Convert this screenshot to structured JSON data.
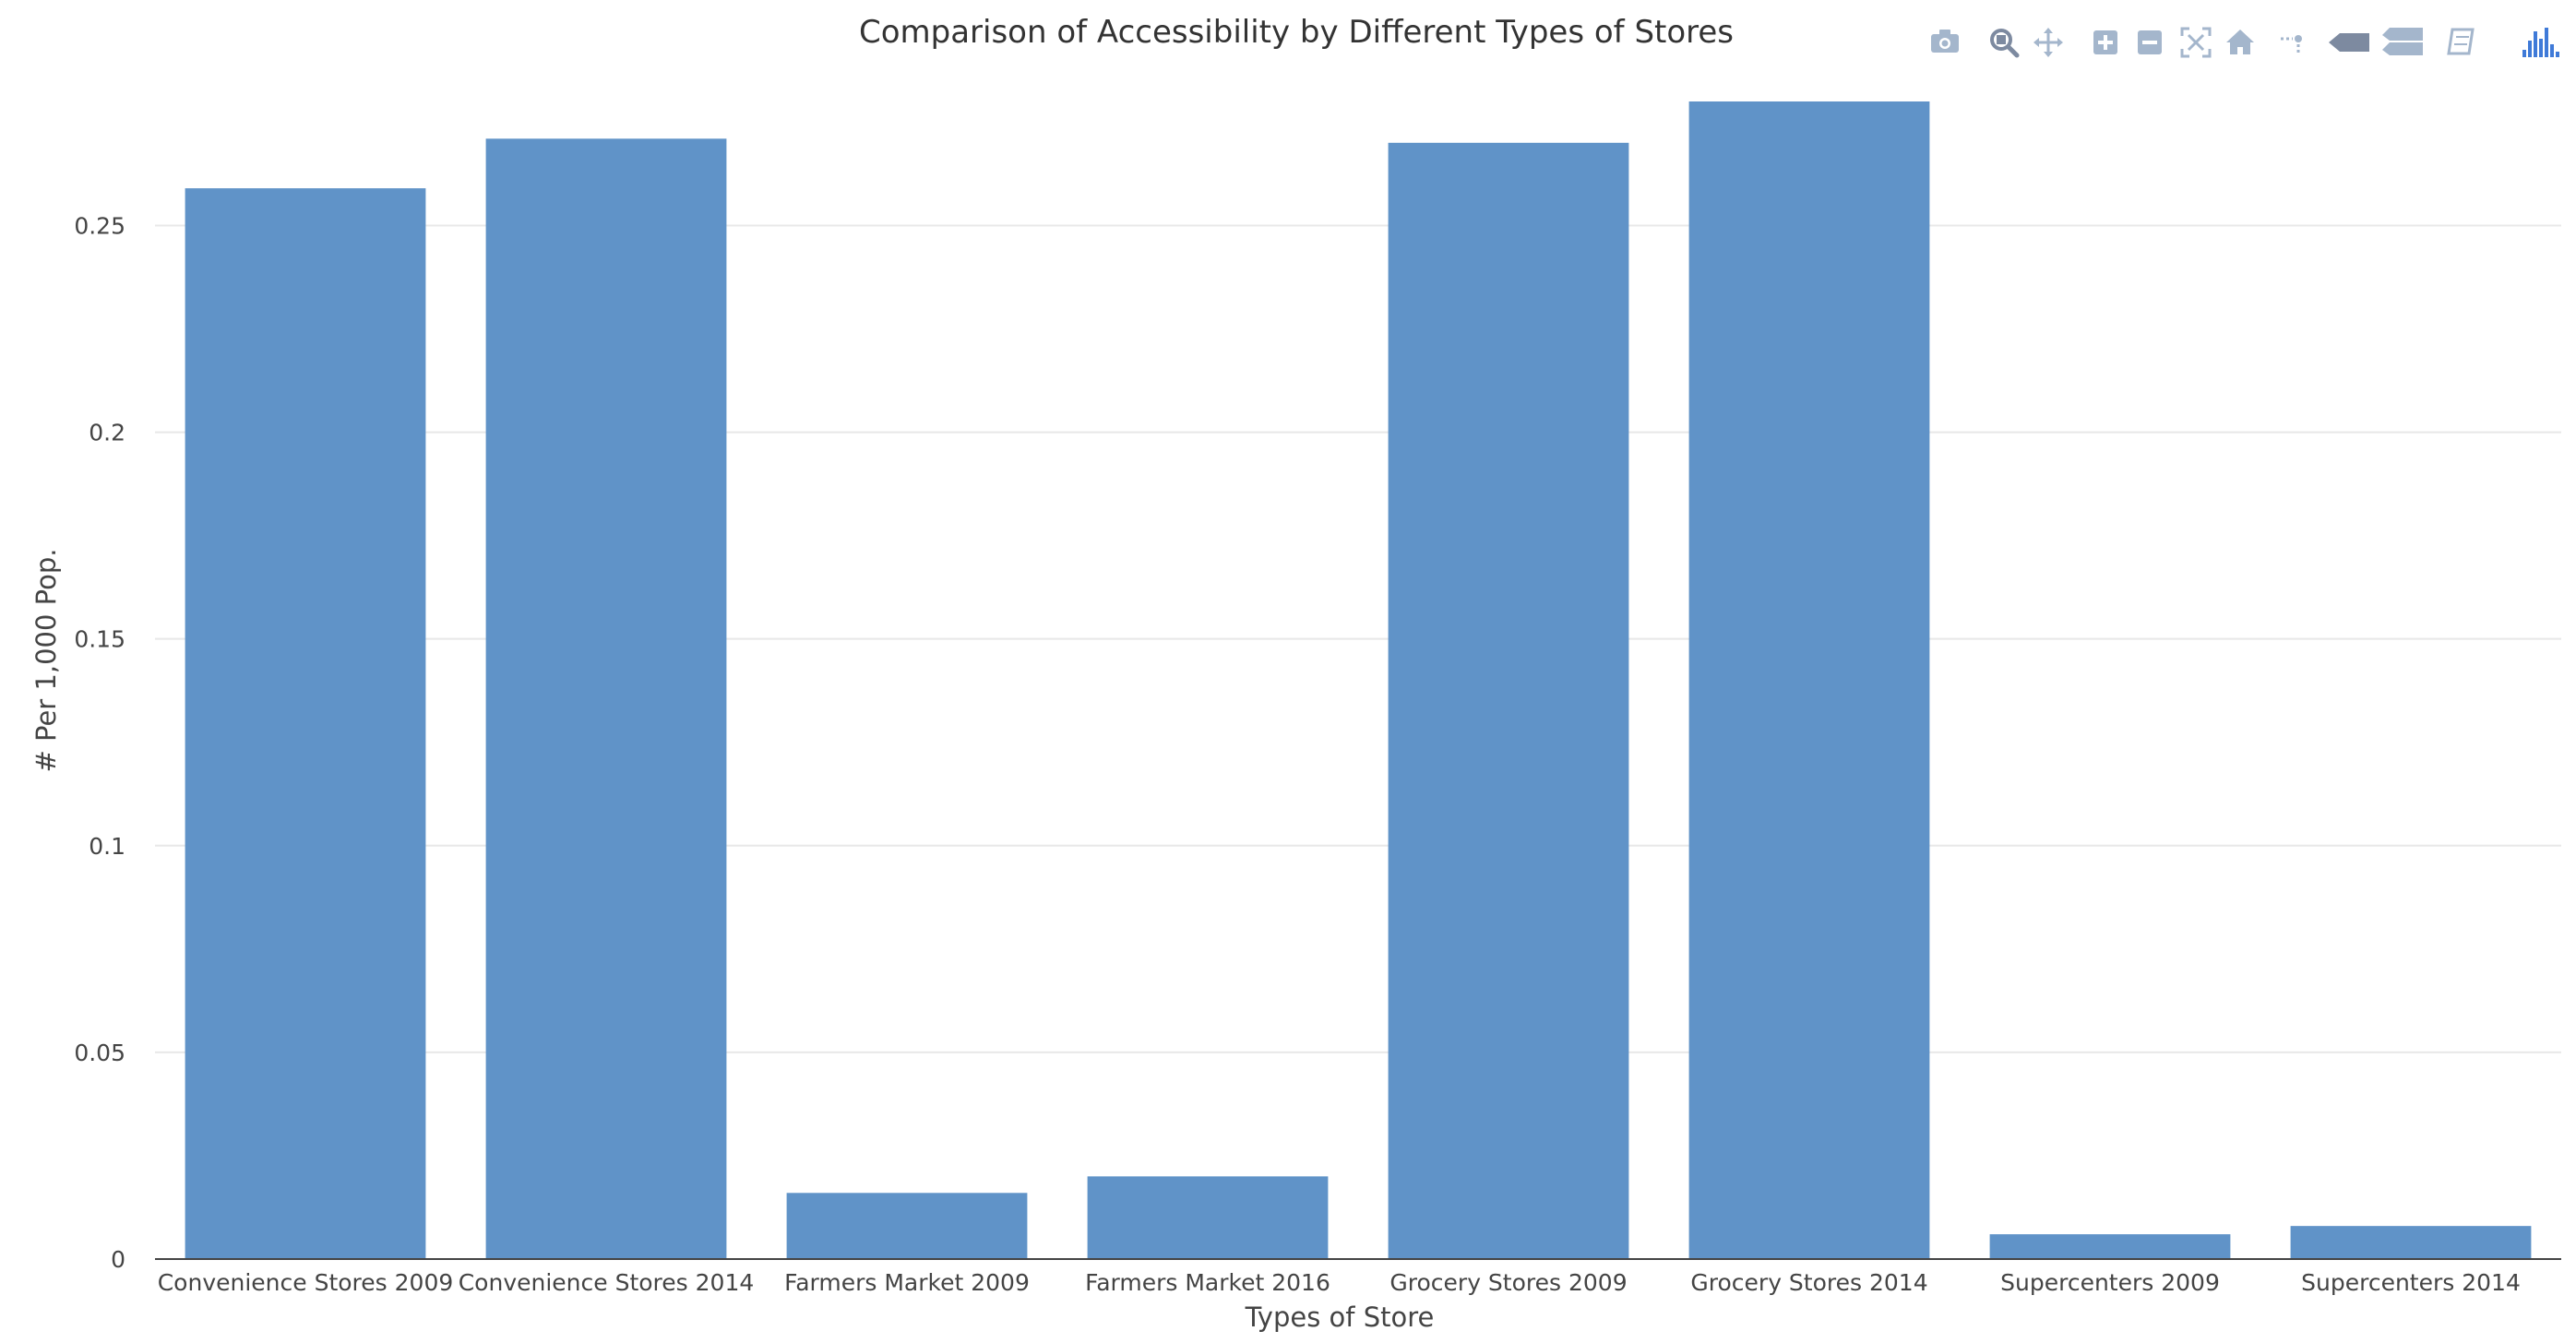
{
  "chart_data": {
    "type": "bar",
    "title": "Comparison of Accessibility by Different Types of Stores",
    "xlabel": "Types of Store",
    "ylabel": "# Per 1,000 Pop.",
    "categories": [
      "Convenience Stores 2009",
      "Convenience Stores 2014",
      "Farmers Market 2009",
      "Farmers Market 2016",
      "Grocery Stores 2009",
      "Grocery Stores 2014",
      "Supercenters 2009",
      "Supercenters 2014"
    ],
    "values": [
      0.259,
      0.271,
      0.016,
      0.02,
      0.27,
      0.28,
      0.006,
      0.008
    ],
    "ylim": [
      0,
      0.28
    ],
    "yticks": [
      0,
      0.05,
      0.1,
      0.15,
      0.2,
      0.25
    ],
    "ytick_labels": [
      "0",
      "0.05",
      "0.1",
      "0.15",
      "0.2",
      "0.25"
    ],
    "grid": true,
    "bar_color": "#6093c8",
    "grid_color": "#e8e8e8"
  },
  "modebar": {
    "icons": [
      "camera-icon",
      "zoom-icon",
      "pan-icon",
      "zoom-in-icon",
      "zoom-out-icon",
      "autoscale-icon",
      "home-icon",
      "spike-lines-icon",
      "hover-closest-icon",
      "hover-compare-icon",
      "edit-icon",
      "plotly-logo-icon"
    ],
    "icon_color": "#a4b6cc",
    "active_color": "#7d8aa0",
    "logo_color": "#3f7ad8"
  }
}
